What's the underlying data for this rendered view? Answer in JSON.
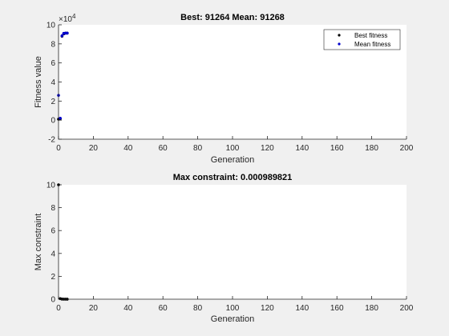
{
  "chart_data": [
    {
      "type": "scatter",
      "title": "Best: 91264 Mean: 91268",
      "xlabel": "Generation",
      "ylabel": "Fitness value",
      "xlim": [
        0,
        200
      ],
      "ylim": [
        -20000,
        100000
      ],
      "x_ticks": [
        0,
        20,
        40,
        60,
        80,
        100,
        120,
        140,
        160,
        180,
        200
      ],
      "y_ticks": [
        -20000,
        0,
        20000,
        40000,
        60000,
        80000,
        100000
      ],
      "y_tick_labels": [
        "-2",
        "0",
        "2",
        "4",
        "6",
        "8",
        "10"
      ],
      "y_multiplier": "×10",
      "y_exponent": "4",
      "legend_position": "top-right",
      "series": [
        {
          "name": "Best fitness",
          "color": "#000000",
          "x": [
            0,
            1,
            2,
            3,
            4,
            5
          ],
          "y": [
            1000,
            1500,
            88000,
            90500,
            91200,
            91264
          ]
        },
        {
          "name": "Mean fitness",
          "color": "#0000cc",
          "x": [
            0,
            1,
            2,
            3,
            4,
            5
          ],
          "y": [
            26000,
            2000,
            88500,
            91000,
            91250,
            91268
          ]
        }
      ]
    },
    {
      "type": "scatter",
      "title": "Max constraint: 0.000989821",
      "xlabel": "Generation",
      "ylabel": "Max constraint",
      "xlim": [
        0,
        200
      ],
      "ylim": [
        0,
        10
      ],
      "x_ticks": [
        0,
        20,
        40,
        60,
        80,
        100,
        120,
        140,
        160,
        180,
        200
      ],
      "y_ticks": [
        0,
        2,
        4,
        6,
        8,
        10
      ],
      "series": [
        {
          "color": "#000000",
          "x": [
            0,
            1,
            2,
            3,
            4,
            5
          ],
          "y": [
            10,
            0.05,
            0.01,
            0.005,
            0.002,
            0.000989821
          ]
        }
      ]
    }
  ]
}
